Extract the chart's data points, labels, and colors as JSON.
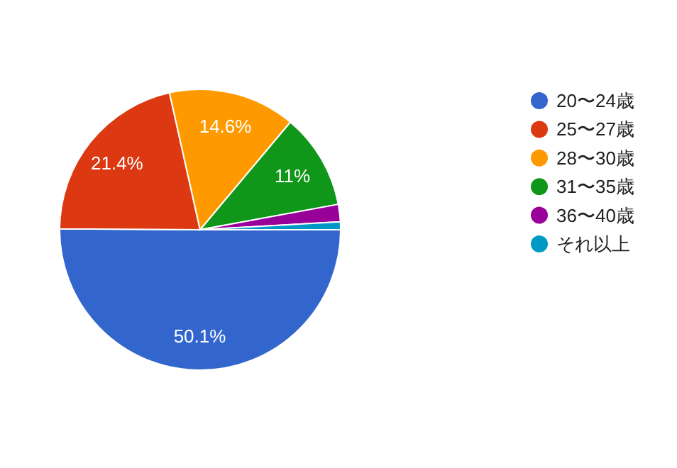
{
  "chart_data": {
    "type": "pie",
    "categories": [
      "20〜24歳",
      "25〜27歳",
      "28〜30歳",
      "31〜35歳",
      "36〜40歳",
      "それ以上"
    ],
    "values": [
      50.1,
      21.4,
      14.6,
      11,
      2.0,
      0.9
    ],
    "colors": [
      "#3366cc",
      "#dc3912",
      "#ff9900",
      "#109618",
      "#990099",
      "#0099c6"
    ],
    "value_labels": [
      "50.1%",
      "21.4%",
      "14.6%",
      "11%",
      null,
      null
    ],
    "legend": "right"
  }
}
